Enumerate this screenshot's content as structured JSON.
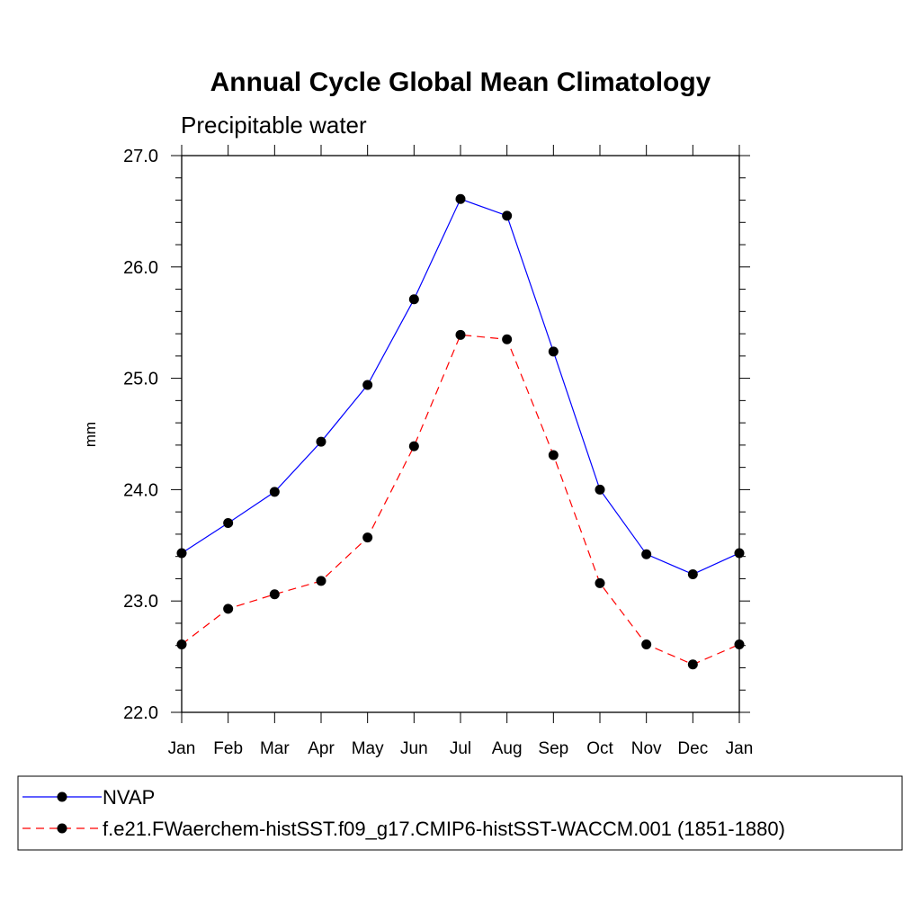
{
  "chart_data": {
    "type": "line",
    "title": "Annual Cycle Global Mean Climatology",
    "subtitle": "Precipitable water",
    "xlabel": "",
    "ylabel": "mm",
    "ylim": [
      22.0,
      27.0
    ],
    "yticks": [
      "22.0",
      "23.0",
      "24.0",
      "25.0",
      "26.0",
      "27.0"
    ],
    "categories": [
      "Jan",
      "Feb",
      "Mar",
      "Apr",
      "May",
      "Jun",
      "Jul",
      "Aug",
      "Sep",
      "Oct",
      "Nov",
      "Dec",
      "Jan"
    ],
    "grid": false,
    "legend_position": "bottom",
    "series": [
      {
        "name": "NVAP",
        "color": "#0000ff",
        "dash": "solid",
        "marker": "filled-circle",
        "values": [
          23.43,
          23.7,
          23.98,
          24.43,
          24.94,
          25.71,
          26.61,
          26.46,
          25.24,
          24.0,
          23.42,
          23.24,
          23.43
        ]
      },
      {
        "name": "f.e21.FWaerchem-histSST.f09_g17.CMIP6-histSST-WACCM.001 (1851-1880)",
        "color": "#ff0000",
        "dash": "dashed",
        "marker": "filled-circle",
        "values": [
          22.61,
          22.93,
          23.06,
          23.18,
          23.57,
          24.39,
          25.39,
          25.35,
          24.31,
          23.16,
          22.61,
          22.43,
          22.61
        ]
      }
    ]
  }
}
